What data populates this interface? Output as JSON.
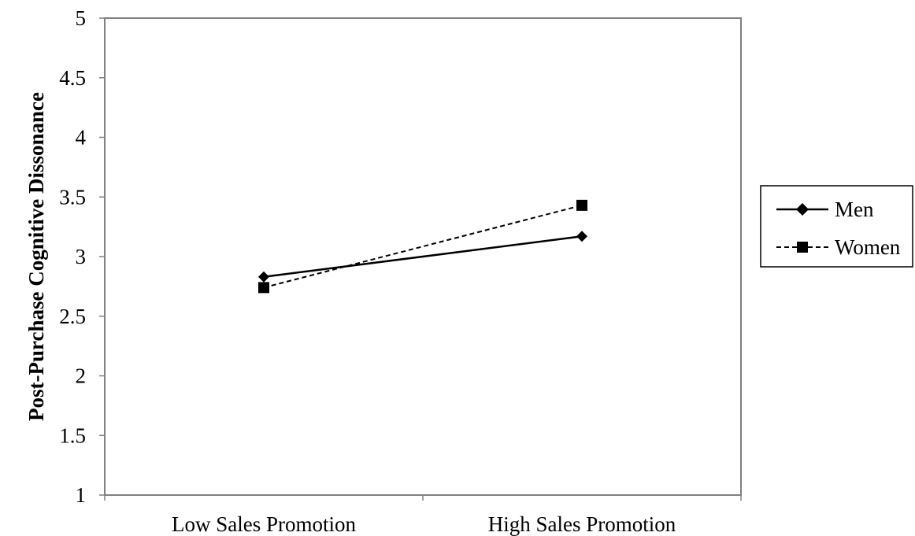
{
  "chart_data": {
    "type": "line",
    "title": "",
    "xlabel": "",
    "ylabel": "Post-Purchase Cognitive Dissonance",
    "categories": [
      "Low Sales Promotion",
      "High Sales Promotion"
    ],
    "ylim": [
      1,
      5
    ],
    "yticks": [
      "1",
      "1.5",
      "2",
      "2.5",
      "3",
      "3.5",
      "4",
      "4.5",
      "5"
    ],
    "grid": false,
    "legend_position": "right",
    "series": [
      {
        "name": "Men",
        "values": [
          2.83,
          3.17
        ],
        "marker": "diamond",
        "line_style": "solid",
        "color": "#000000"
      },
      {
        "name": "Women",
        "values": [
          2.74,
          3.43
        ],
        "marker": "square",
        "line_style": "dashed",
        "color": "#000000"
      }
    ]
  }
}
